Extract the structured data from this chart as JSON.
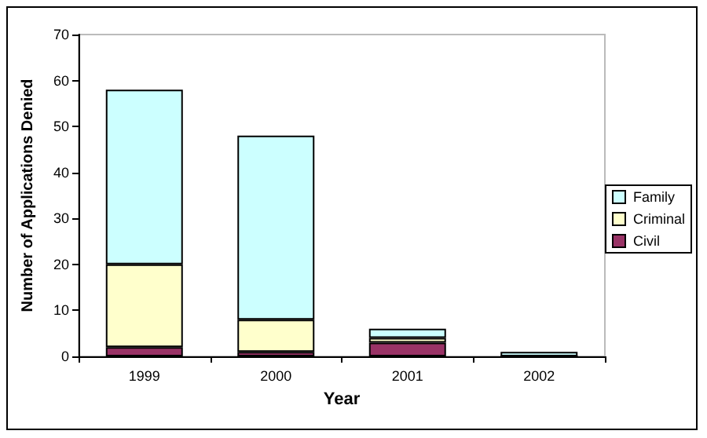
{
  "chart_data": {
    "type": "bar",
    "stacked": true,
    "xlabel": "Year",
    "ylabel": "Number of Applications Denied",
    "categories": [
      "1999",
      "2000",
      "2001",
      "2002"
    ],
    "series": [
      {
        "name": "Civil",
        "color": "#993366",
        "values": [
          2,
          1,
          3,
          0
        ]
      },
      {
        "name": "Criminal",
        "color": "#ffffcc",
        "values": [
          18,
          7,
          1,
          0
        ]
      },
      {
        "name": "Family",
        "color": "#ccffff",
        "values": [
          38,
          40,
          2,
          1
        ]
      }
    ],
    "ylim": [
      0,
      70
    ],
    "yticks": [
      0,
      10,
      20,
      30,
      40,
      50,
      60,
      70
    ],
    "grid": false,
    "legend": "right"
  }
}
